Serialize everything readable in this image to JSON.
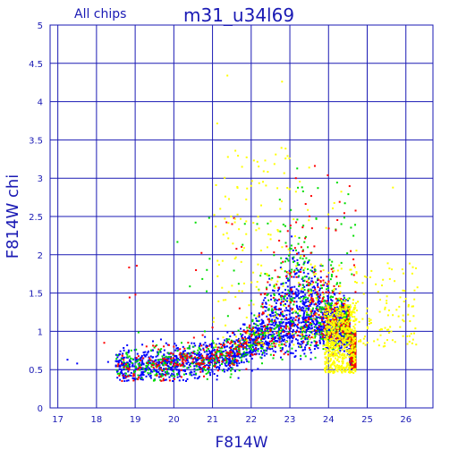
{
  "chart_data": {
    "type": "scatter",
    "title": "m31_u34l69",
    "subtitle": "All chips",
    "xlabel": "F814W",
    "ylabel": "F814W chi",
    "xlim": [
      16.8,
      26.7
    ],
    "ylim": [
      0,
      5
    ],
    "xticks": [
      17,
      18,
      19,
      20,
      21,
      22,
      23,
      24,
      25,
      26
    ],
    "yticks": [
      0,
      0.5,
      1,
      1.5,
      2,
      2.5,
      3,
      3.5,
      4,
      4.5,
      5
    ],
    "xtick_labels": [
      "17",
      "18",
      "19",
      "20",
      "21",
      "22",
      "23",
      "24",
      "25",
      "26"
    ],
    "ytick_labels": [
      "0",
      "0.5",
      "1",
      "1.5",
      "2",
      "2.5",
      "3",
      "3.5",
      "4",
      "4.5",
      "5"
    ],
    "grid": true,
    "series": [
      {
        "color": "#0000ff",
        "count": 2600,
        "points": [
          [
            17.25,
            0.63
          ],
          [
            17.5,
            0.58
          ],
          [
            18.3,
            0.6
          ],
          [
            18.7,
            0.5
          ],
          [
            19.1,
            0.55
          ],
          [
            19.8,
            0.45
          ],
          [
            20.5,
            0.6
          ],
          [
            21.0,
            0.75
          ],
          [
            21.5,
            0.8
          ],
          [
            22.0,
            0.9
          ],
          [
            22.5,
            1.0
          ],
          [
            23.0,
            1.1
          ],
          [
            23.5,
            1.2
          ],
          [
            24.0,
            0.9
          ],
          [
            24.5,
            0.7
          ]
        ]
      },
      {
        "color": "#00dd00",
        "count": 900,
        "points": [
          [
            18.9,
            0.75
          ],
          [
            19.6,
            0.7
          ],
          [
            20.2,
            0.85
          ],
          [
            20.8,
            1.0
          ],
          [
            21.4,
            1.2
          ],
          [
            22.0,
            1.4
          ],
          [
            22.6,
            1.6
          ],
          [
            23.2,
            1.8
          ],
          [
            23.6,
            1.3
          ],
          [
            24.1,
            1.0
          ]
        ]
      },
      {
        "color": "#ff0000",
        "count": 700,
        "points": [
          [
            18.2,
            0.85
          ],
          [
            19.2,
            0.65
          ],
          [
            20.0,
            0.8
          ],
          [
            21.0,
            1.05
          ],
          [
            21.7,
            1.3
          ],
          [
            22.4,
            1.55
          ],
          [
            23.0,
            1.75
          ],
          [
            23.6,
            1.2
          ],
          [
            24.4,
            0.9
          ]
        ]
      },
      {
        "color": "#ffff00",
        "count": 900,
        "points": [
          [
            21.2,
            2.6
          ],
          [
            22.0,
            2.9
          ],
          [
            22.8,
            2.1
          ],
          [
            23.5,
            1.5
          ],
          [
            24.0,
            1.2
          ],
          [
            24.3,
            0.85
          ],
          [
            24.6,
            0.75
          ],
          [
            25.0,
            1.3
          ],
          [
            25.5,
            1.4
          ],
          [
            26.2,
            1.2
          ]
        ]
      }
    ]
  }
}
